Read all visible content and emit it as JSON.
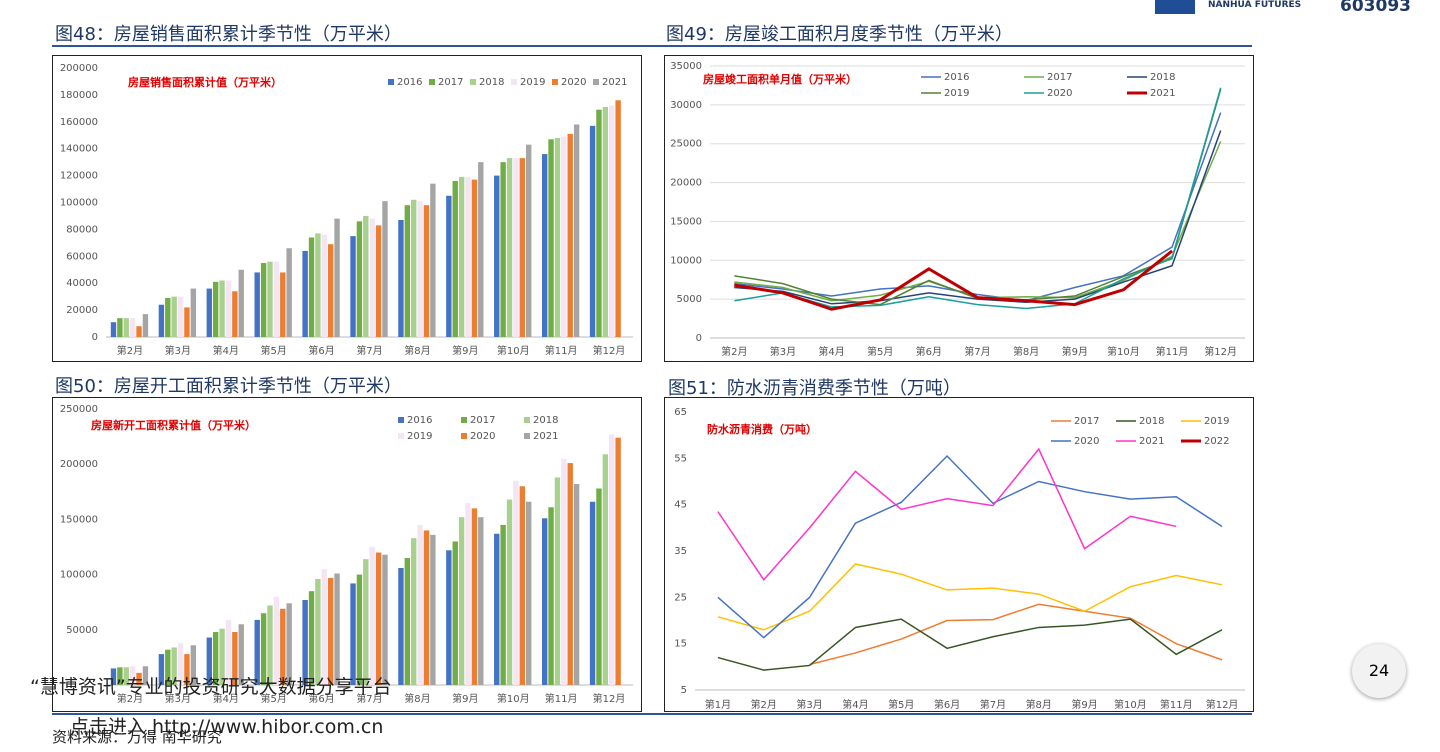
{
  "header": {
    "logo": "NANHUA FUTURES",
    "code": "603093"
  },
  "chart_data": [
    {
      "type": "bar",
      "title": "图48：房屋销售面积累计季节性（万平米）",
      "annotation": "房屋销售面积累计值（万平米）",
      "categories": [
        "第2月",
        "第3月",
        "第4月",
        "第5月",
        "第6月",
        "第7月",
        "第8月",
        "第9月",
        "第10月",
        "第11月",
        "第12月"
      ],
      "series": [
        {
          "name": "2016",
          "color": "#4472c4",
          "values": [
            11000,
            24000,
            36000,
            48000,
            64000,
            75000,
            87000,
            105000,
            120000,
            136000,
            157000
          ]
        },
        {
          "name": "2017",
          "color": "#70ad47",
          "values": [
            14000,
            29000,
            41000,
            55000,
            74000,
            86000,
            98000,
            116000,
            130000,
            147000,
            169000
          ]
        },
        {
          "name": "2018",
          "color": "#a9d18e",
          "values": [
            14000,
            30000,
            42000,
            56000,
            77000,
            90000,
            102000,
            119000,
            133000,
            148000,
            171000
          ]
        },
        {
          "name": "2019",
          "color": "#f4e4f4",
          "values": [
            14000,
            30000,
            42000,
            56000,
            76000,
            88000,
            101000,
            119000,
            133000,
            149000,
            172000
          ]
        },
        {
          "name": "2020",
          "color": "#ed7d31",
          "values": [
            8000,
            22000,
            34000,
            48000,
            69000,
            83000,
            98000,
            117000,
            133000,
            151000,
            176000
          ]
        },
        {
          "name": "2021",
          "color": "#a5a5a5",
          "values": [
            17000,
            36000,
            50000,
            66000,
            88000,
            101000,
            114000,
            130000,
            143000,
            158000,
            null
          ]
        }
      ],
      "ylim": [
        0,
        200000
      ],
      "yticks": [
        0,
        20000,
        40000,
        60000,
        80000,
        100000,
        120000,
        140000,
        160000,
        180000,
        200000
      ],
      "grid": false
    },
    {
      "type": "line",
      "title": "图49：房屋竣工面积月度季节性（万平米）",
      "annotation": "房屋竣工面积单月值（万平米）",
      "categories": [
        "第2月",
        "第3月",
        "第4月",
        "第5月",
        "第6月",
        "第7月",
        "第8月",
        "第9月",
        "第10月",
        "第11月",
        "第12月"
      ],
      "series": [
        {
          "name": "2016",
          "color": "#4472c4",
          "values": [
            7000,
            6300,
            5400,
            6300,
            6700,
            5600,
            4800,
            6500,
            8000,
            11700,
            29000
          ]
        },
        {
          "name": "2017",
          "color": "#70ad47",
          "values": [
            7200,
            6500,
            4800,
            5500,
            7300,
            5200,
            5300,
            5200,
            7400,
            10500,
            25300
          ]
        },
        {
          "name": "2018",
          "color": "#264478",
          "values": [
            6500,
            6000,
            4400,
            4800,
            5800,
            5000,
            4600,
            5000,
            7200,
            9300,
            26700
          ]
        },
        {
          "name": "2019",
          "color": "#548235",
          "values": [
            8000,
            7000,
            5000,
            4300,
            7400,
            5100,
            4900,
            5400,
            7900,
            10200,
            32000
          ]
        },
        {
          "name": "2020",
          "color": "#1a9e9e",
          "values": [
            4800,
            5800,
            4000,
            4200,
            5300,
            4300,
            3800,
            4400,
            7600,
            10300,
            32200
          ]
        },
        {
          "name": "2021",
          "color": "#c00000",
          "values": [
            6800,
            5800,
            3700,
            4900,
            8900,
            5200,
            4800,
            4300,
            6200,
            11200,
            null
          ]
        }
      ],
      "ylim": [
        0,
        35000
      ],
      "yticks": [
        0,
        5000,
        10000,
        15000,
        20000,
        25000,
        30000,
        35000
      ],
      "grid": true
    },
    {
      "type": "bar",
      "title": "图50：房屋开工面积累计季节性（万平米）",
      "annotation": "房屋新开工面积累计值（万平米）",
      "categories": [
        "第2月",
        "第3月",
        "第4月",
        "第5月",
        "第6月",
        "第7月",
        "第8月",
        "第9月",
        "第10月",
        "第11月",
        "第12月"
      ],
      "series": [
        {
          "name": "2016",
          "color": "#4472c4",
          "values": [
            15000,
            28000,
            43000,
            59000,
            77000,
            92000,
            106000,
            122000,
            137000,
            151000,
            166000
          ]
        },
        {
          "name": "2017",
          "color": "#70ad47",
          "values": [
            16000,
            32000,
            48000,
            65000,
            85000,
            100000,
            115000,
            130000,
            145000,
            161000,
            178000
          ]
        },
        {
          "name": "2018",
          "color": "#a9d18e",
          "values": [
            16000,
            34000,
            51000,
            72000,
            96000,
            114000,
            133000,
            152000,
            168000,
            188000,
            209000
          ]
        },
        {
          "name": "2019",
          "color": "#f4e4f4",
          "values": [
            17000,
            38000,
            59000,
            80000,
            105000,
            125000,
            145000,
            165000,
            185000,
            205000,
            227000
          ]
        },
        {
          "name": "2020",
          "color": "#ed7d31",
          "values": [
            11000,
            28000,
            48000,
            69000,
            97000,
            120000,
            140000,
            160000,
            180000,
            201000,
            224000
          ]
        },
        {
          "name": "2021",
          "color": "#a5a5a5",
          "values": [
            17000,
            36000,
            55000,
            74000,
            101000,
            118000,
            136000,
            152000,
            166000,
            182000,
            null
          ]
        }
      ],
      "ylim": [
        0,
        250000
      ],
      "yticks": [
        50000,
        100000,
        150000,
        200000,
        250000
      ],
      "grid": false
    },
    {
      "type": "line",
      "title": "图51：防水沥青消费季节性（万吨）",
      "annotation": "防水沥青消费（万吨）",
      "categories": [
        "第1月",
        "第2月",
        "第3月",
        "第4月",
        "第5月",
        "第6月",
        "第7月",
        "第8月",
        "第9月",
        "第10月",
        "第11月",
        "第12月"
      ],
      "series": [
        {
          "name": "2017",
          "color": "#ed7d31",
          "values": [
            null,
            null,
            10.5,
            13,
            16,
            20,
            20.2,
            23.5,
            22,
            20.5,
            15,
            11.5
          ]
        },
        {
          "name": "2018",
          "color": "#375623",
          "values": [
            12,
            9.3,
            10.3,
            18.5,
            20.3,
            14,
            16.5,
            18.5,
            19,
            20.3,
            12.7,
            18
          ]
        },
        {
          "name": "2019",
          "color": "#ffc000",
          "values": [
            20.8,
            18,
            22,
            32.2,
            30,
            26.6,
            27,
            25.7,
            22,
            27.3,
            29.7,
            27.7
          ]
        },
        {
          "name": "2020",
          "color": "#4472c4",
          "values": [
            25,
            16.3,
            25,
            41,
            45.5,
            55.5,
            45.3,
            50,
            47.8,
            46.2,
            46.7,
            40.3
          ]
        },
        {
          "name": "2021",
          "color": "#ff33cc",
          "values": [
            43.5,
            28.8,
            40,
            52.2,
            44,
            46.3,
            44.8,
            57,
            35.5,
            42.5,
            40.3,
            null
          ]
        },
        {
          "name": "2022",
          "color": "#c00000",
          "values": [
            null,
            null,
            null,
            null,
            null,
            null,
            null,
            null,
            null,
            null,
            null,
            null
          ]
        }
      ],
      "ylim": [
        5,
        65
      ],
      "yticks": [
        5,
        15,
        25,
        35,
        45,
        55,
        65
      ],
      "grid": false
    }
  ],
  "footer": {
    "page": "24",
    "watermark": "“慧博资讯”专业的投资研究大数据分享平台",
    "link": "点击进入 http://www.hibor.com.cn",
    "source": "资料来源：万得 南华研究"
  }
}
